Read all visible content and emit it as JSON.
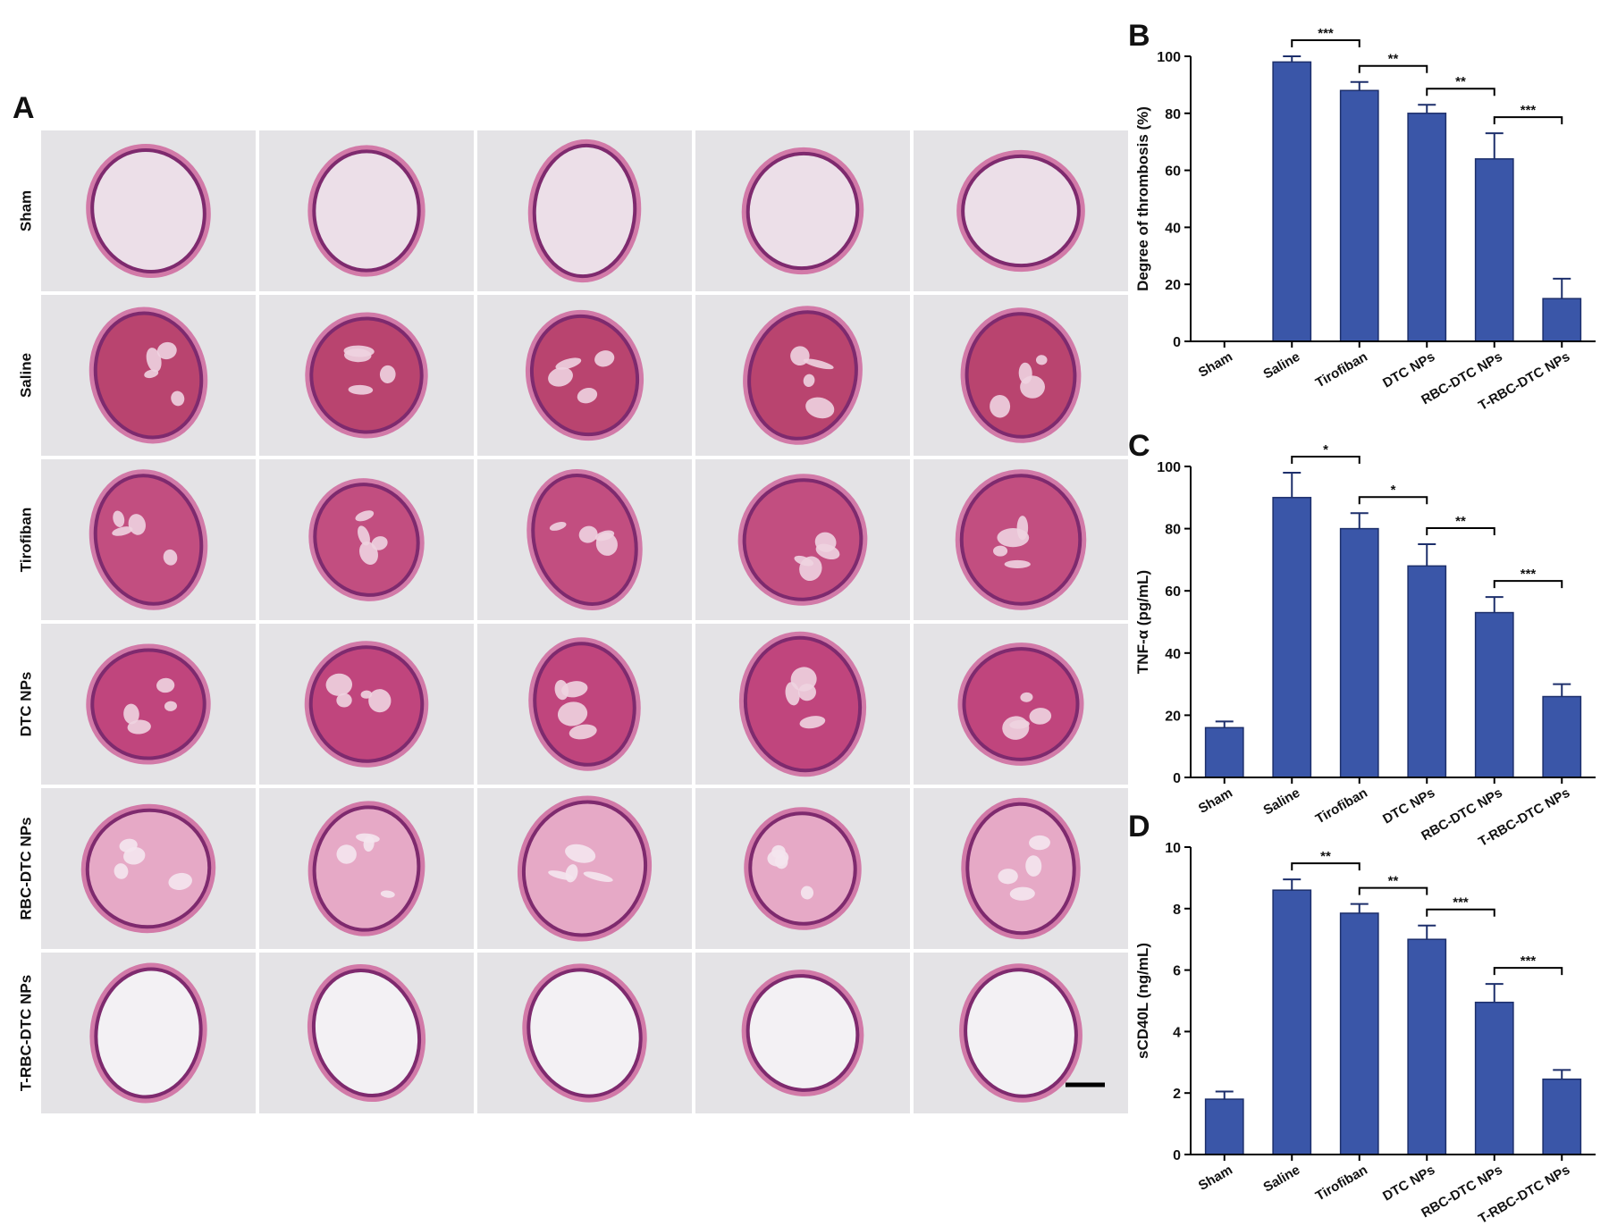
{
  "panel_a": {
    "label": "A",
    "rows": [
      "Sham",
      "Saline",
      "Tirofiban",
      "DTC NPs",
      "RBC-DTC NPs",
      "T-RBC-DTC NPs"
    ]
  },
  "chart_data": [
    {
      "type": "bar",
      "label": "B",
      "y_label": "Degree of thrombosis (%)",
      "color": "#3a56a8",
      "categories": [
        "Sham",
        "Saline",
        "Tirofiban",
        "DTC NPs",
        "RBC-DTC NPs",
        "T-RBC-DTC NPs"
      ],
      "values": [
        0,
        98,
        88,
        80,
        64,
        15
      ],
      "errors": [
        0,
        2,
        3,
        3,
        9,
        7
      ],
      "ylim": [
        0,
        100
      ],
      "yticks": [
        0,
        20,
        40,
        60,
        80,
        100
      ],
      "annotations": [
        "***",
        "**",
        "**",
        "***"
      ]
    },
    {
      "type": "bar",
      "label": "C",
      "y_label": "TNF-α (pg/mL)",
      "color": "#3a56a8",
      "categories": [
        "Sham",
        "Saline",
        "Tirofiban",
        "DTC NPs",
        "RBC-DTC NPs",
        "T-RBC-DTC NPs"
      ],
      "values": [
        16,
        90,
        80,
        68,
        53,
        26
      ],
      "errors": [
        2,
        8,
        5,
        7,
        5,
        4
      ],
      "ylim": [
        0,
        100
      ],
      "yticks": [
        0,
        20,
        40,
        60,
        80,
        100
      ],
      "annotations": [
        "*",
        "*",
        "**",
        "***"
      ]
    },
    {
      "type": "bar",
      "label": "D",
      "y_label": "sCD40L (ng/mL)",
      "color": "#3a56a8",
      "categories": [
        "Sham",
        "Saline",
        "Tirofiban",
        "DTC NPs",
        "RBC-DTC NPs",
        "T-RBC-DTC NPs"
      ],
      "values": [
        1.8,
        8.6,
        7.85,
        7.0,
        4.95,
        2.45
      ],
      "errors": [
        0.25,
        0.35,
        0.3,
        0.45,
        0.6,
        0.3
      ],
      "ylim": [
        0,
        10
      ],
      "yticks": [
        0,
        2,
        4,
        6,
        8,
        10
      ],
      "annotations": [
        "**",
        "**",
        "***",
        "***"
      ]
    }
  ]
}
